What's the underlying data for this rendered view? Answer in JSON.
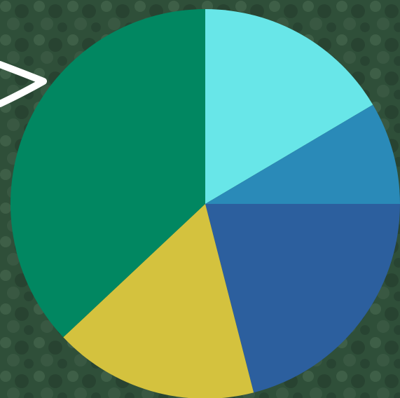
{
  "background": {
    "base": "#2f4f39",
    "light": "#4a6b52",
    "dark": "#1f3527"
  },
  "arrow": {
    "icon": "chevron-right-icon",
    "color": "#ffffff"
  },
  "chart_data": {
    "type": "pie",
    "start_angle_deg": 0,
    "clockwise": true,
    "slices": [
      {
        "value": 16.5,
        "color": "#68e6e8"
      },
      {
        "value": 8.5,
        "color": "#2a8ab8"
      },
      {
        "value": 21.0,
        "color": "#2c5f9e"
      },
      {
        "value": 17.0,
        "color": "#d4c23e"
      },
      {
        "value": 37.0,
        "color": "#018761"
      }
    ]
  }
}
